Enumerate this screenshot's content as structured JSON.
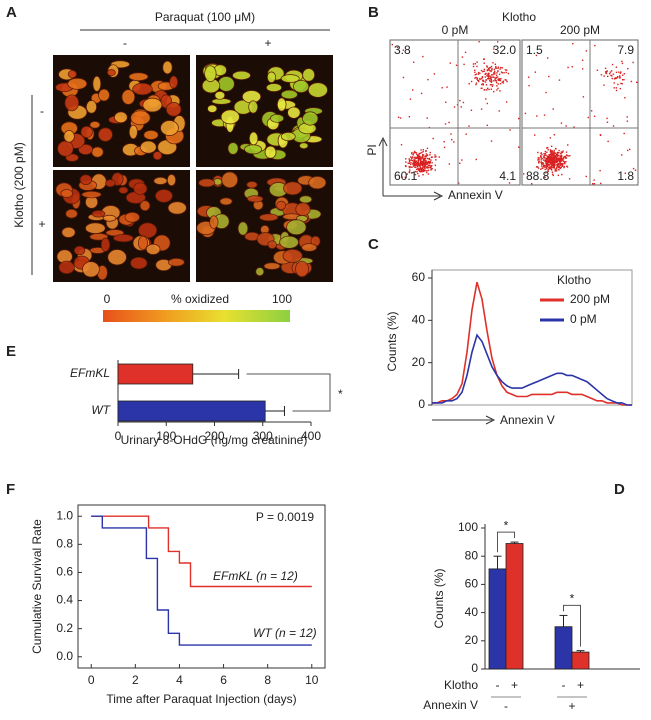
{
  "panel_a": {
    "letter": "A",
    "treatment": "Paraquat (100 μM)",
    "columns": [
      "-",
      "+"
    ],
    "row_title": "Klotho (200 pM)",
    "rows": [
      "-",
      "+"
    ],
    "colorbar": {
      "min": "0",
      "label": "% oxidized",
      "max": "100"
    }
  },
  "panel_b": {
    "letter": "B",
    "title": "Klotho",
    "y_label": "PI",
    "x_label": "Annexin V",
    "plots": [
      {
        "label": "0 pM",
        "quadrants": [
          "3.8",
          "32.0",
          "60.1",
          "4.1"
        ]
      },
      {
        "label": "200 pM",
        "quadrants": [
          "1.5",
          "7.9",
          "88.8",
          "1.8"
        ]
      }
    ]
  },
  "chart_data": [
    {
      "type": "line",
      "letter": "C",
      "y_label": "Counts (%)",
      "x_label": "Annexin V",
      "legend_title": "Klotho",
      "x": [
        0,
        25,
        50,
        75,
        100,
        125,
        150,
        175,
        200,
        225,
        250,
        275,
        300,
        325,
        350,
        375,
        400,
        425,
        450,
        475,
        500,
        525,
        550,
        575,
        600,
        625,
        650,
        675,
        700,
        725,
        750,
        775,
        800,
        825,
        850,
        875,
        900,
        925,
        950,
        975,
        1000
      ],
      "xlim": [
        0,
        1000
      ],
      "ylim": [
        0,
        60
      ],
      "yticks": [
        0,
        20,
        40,
        60
      ],
      "series": [
        {
          "name": "200 pM",
          "color": "#e0302a",
          "values": [
            1,
            1,
            2,
            2,
            3,
            5,
            10,
            25,
            45,
            58,
            50,
            35,
            22,
            14,
            9,
            6,
            5,
            4,
            4,
            4,
            5,
            5,
            5,
            5,
            5,
            6,
            6,
            6,
            5,
            5,
            5,
            4,
            3,
            2,
            2,
            1,
            1,
            1,
            0,
            0,
            0
          ]
        },
        {
          "name": "0 pM",
          "color": "#2b35a8",
          "values": [
            1,
            1,
            1,
            2,
            2,
            3,
            6,
            14,
            25,
            33,
            30,
            24,
            18,
            14,
            11,
            9,
            8,
            8,
            8,
            9,
            10,
            11,
            12,
            13,
            14,
            15,
            15,
            14,
            14,
            13,
            12,
            11,
            9,
            7,
            5,
            3,
            2,
            1,
            1,
            0,
            0
          ]
        }
      ]
    },
    {
      "type": "hbar",
      "letter": "E",
      "x_label": "Urinary 8-OHdG (ng/mg creatinine)",
      "annotation": "*",
      "categories": [
        "EFmKL",
        "WT"
      ],
      "values": [
        155,
        305
      ],
      "errors": [
        95,
        40
      ],
      "colors": [
        "#e0302a",
        "#2b35a8"
      ],
      "xlim": [
        0,
        400
      ],
      "xticks": [
        0,
        100,
        200,
        300,
        400
      ]
    },
    {
      "type": "step",
      "letter": "F",
      "y_label": "Cumulative Survival Rate",
      "x_label": "Time after Paraquat Injection (days)",
      "annotation": "P = 0.0019",
      "xlim": [
        -0.6,
        10.6
      ],
      "xticks": [
        0,
        2,
        4,
        6,
        8,
        10
      ],
      "ylim": [
        -0.08,
        1.08
      ],
      "yticks": [
        {
          "value": 0,
          "label": "0.0"
        },
        0.2,
        0.4,
        0.6,
        0.8,
        {
          "value": 1,
          "label": "1.0"
        }
      ],
      "series": [
        {
          "name": "EFmKL (n = 12)",
          "color": "#e0302a",
          "x": [
            0,
            2.6,
            3.5,
            4.0,
            4.5,
            10
          ],
          "values": [
            1,
            0.917,
            0.75,
            0.667,
            0.5,
            0.5
          ]
        },
        {
          "name": "WT (n = 12)",
          "color": "#2b35a8",
          "x": [
            0,
            0.5,
            2.5,
            3.0,
            3.5,
            4.0,
            10
          ],
          "values": [
            1,
            0.917,
            0.7,
            0.333,
            0.167,
            0.083,
            0.083
          ]
        }
      ]
    },
    {
      "type": "bar",
      "letter": "D",
      "y_label": "Counts (%)",
      "series_title": "Klotho",
      "category_title": "Annexin V",
      "annotations": [
        "*",
        "*"
      ],
      "categories": [
        "-",
        "+"
      ],
      "ylim": [
        0,
        100
      ],
      "yticks": [
        0,
        20,
        40,
        60,
        80,
        100
      ],
      "series": [
        {
          "name": "-",
          "color": "#2b35a8",
          "values": [
            71,
            30
          ],
          "errors": [
            9,
            8
          ]
        },
        {
          "name": "+",
          "color": "#e0302a",
          "values": [
            89,
            12
          ],
          "errors": [
            1,
            1
          ]
        }
      ]
    }
  ]
}
